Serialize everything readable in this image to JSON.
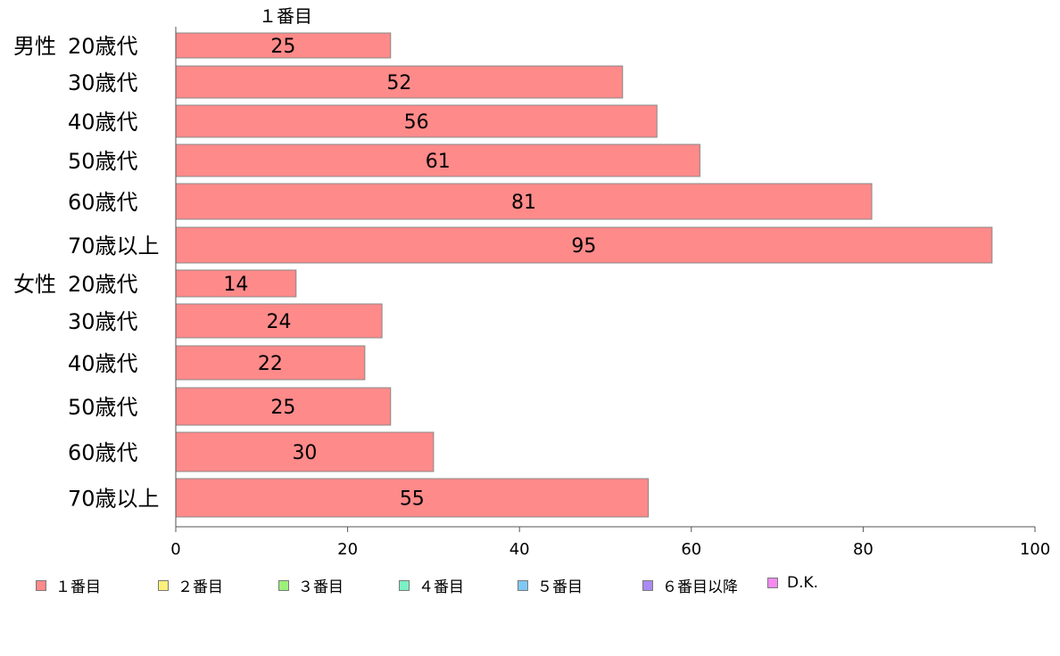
{
  "chart_data": {
    "type": "bar",
    "orientation": "horizontal",
    "stack_header": "１番目",
    "groups": [
      {
        "label": "男性",
        "categories": [
          "20歳代",
          "30歳代",
          "40歳代",
          "50歳代",
          "60歳代",
          "70歳以上"
        ],
        "values": [
          25,
          52,
          56,
          61,
          81,
          95
        ]
      },
      {
        "label": "女性",
        "categories": [
          "20歳代",
          "30歳代",
          "40歳代",
          "50歳代",
          "60歳代",
          "70歳以上"
        ],
        "values": [
          14,
          24,
          22,
          25,
          30,
          55
        ]
      }
    ],
    "series": [
      {
        "name": "１番目",
        "color": "#ff8a8a"
      },
      {
        "name": "２番目",
        "color": "#fff07a"
      },
      {
        "name": "３番目",
        "color": "#9cf07a"
      },
      {
        "name": "４番目",
        "color": "#7af0c4"
      },
      {
        "name": "５番目",
        "color": "#80c8f4"
      },
      {
        "name": "６番目以降",
        "color": "#a98af2"
      },
      {
        "name": "D.K.",
        "color": "#f48af0"
      }
    ],
    "xlim": [
      0,
      100
    ],
    "xticks": [
      0,
      20,
      40,
      60,
      80,
      100
    ],
    "grid": false,
    "legend_position": "bottom"
  }
}
